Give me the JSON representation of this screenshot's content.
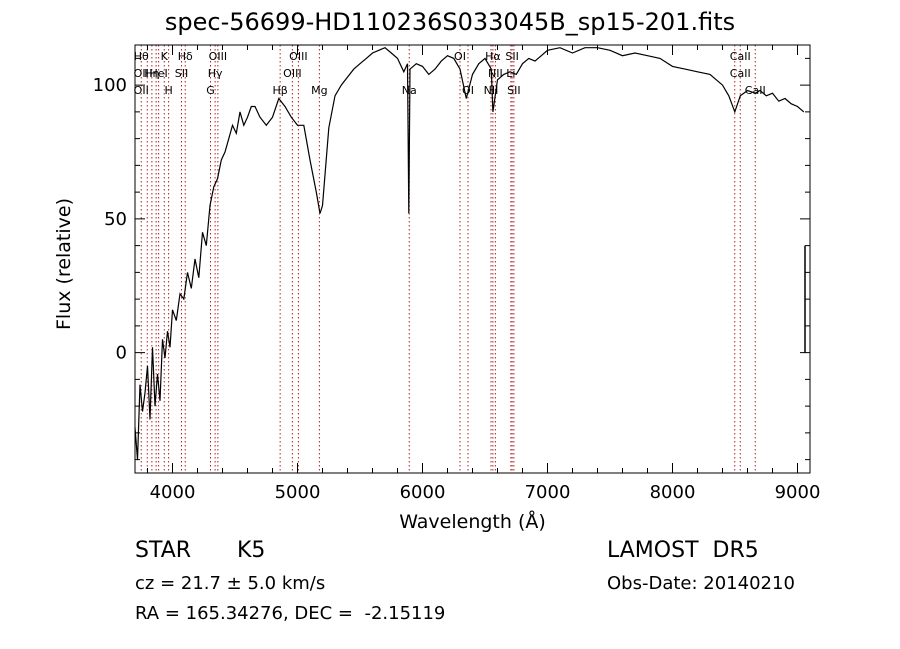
{
  "chart_data": {
    "type": "line",
    "title": "spec-56699-HD110236S033045B_sp15-201.fits",
    "xlabel": "Wavelength (Å)",
    "ylabel": "Flux (relative)",
    "xlim": [
      3700,
      9100
    ],
    "ylim": [
      -45,
      115
    ],
    "xticks": [
      {
        "value": 4000,
        "label": "4000"
      },
      {
        "value": 5000,
        "label": "5000"
      },
      {
        "value": 6000,
        "label": "6000"
      },
      {
        "value": 7000,
        "label": "7000"
      },
      {
        "value": 8000,
        "label": "8000"
      },
      {
        "value": 9000,
        "label": "9000"
      }
    ],
    "yticks": [
      {
        "value": 0,
        "label": "0"
      },
      {
        "value": 50,
        "label": "50"
      },
      {
        "value": 100,
        "label": "100"
      }
    ],
    "grid": false,
    "series": [
      {
        "x": [
          3700,
          3720,
          3740,
          3760,
          3780,
          3800,
          3820,
          3840,
          3860,
          3880,
          3900,
          3920,
          3940,
          3960,
          3980,
          4000,
          4030,
          4060,
          4090,
          4120,
          4150,
          4180,
          4210,
          4240,
          4270,
          4300,
          4330,
          4360,
          4390,
          4420,
          4450,
          4480,
          4510,
          4540,
          4570,
          4600,
          4630,
          4660,
          4700,
          4750,
          4800,
          4850,
          4900,
          4950,
          5000,
          5050,
          5100,
          5150,
          5180,
          5200,
          5250,
          5300,
          5350,
          5400,
          5450,
          5500,
          5550,
          5600,
          5650,
          5700,
          5750,
          5800,
          5850,
          5880,
          5890,
          5900,
          5950,
          6000,
          6050,
          6100,
          6150,
          6200,
          6250,
          6300,
          6350,
          6400,
          6450,
          6500,
          6550,
          6563,
          6600,
          6650,
          6700,
          6750,
          6800,
          6850,
          6900,
          6950,
          7000,
          7100,
          7200,
          7300,
          7400,
          7500,
          7600,
          7700,
          7800,
          7900,
          8000,
          8100,
          8200,
          8300,
          8400,
          8450,
          8498,
          8542,
          8600,
          8662,
          8700,
          8750,
          8800,
          8850,
          8900,
          8950,
          9000,
          9050
        ],
        "y": [
          -28,
          -40,
          -12,
          -22,
          -15,
          -5,
          -25,
          2,
          -20,
          -8,
          -18,
          5,
          -2,
          8,
          2,
          16,
          12,
          22,
          20,
          30,
          24,
          35,
          28,
          45,
          40,
          55,
          62,
          65,
          72,
          75,
          80,
          85,
          82,
          90,
          85,
          88,
          92,
          92,
          88,
          85,
          88,
          95,
          92,
          88,
          85,
          85,
          72,
          60,
          52,
          55,
          84,
          96,
          100,
          103,
          106,
          108,
          110,
          112,
          113,
          114,
          112,
          110,
          105,
          108,
          52,
          106,
          108,
          107,
          104,
          106,
          109,
          111,
          110,
          106,
          95,
          104,
          108,
          110,
          106,
          90,
          102,
          104,
          105,
          104,
          108,
          110,
          109,
          111,
          113,
          114,
          112,
          114,
          114,
          113,
          111,
          112,
          111,
          110,
          107,
          106,
          105,
          104,
          100,
          96,
          90,
          96,
          98,
          97,
          98,
          96,
          97,
          94,
          95,
          93,
          92,
          90
        ]
      }
    ],
    "error_bar": {
      "x": 9060,
      "y_low": 0,
      "y_high": 40
    },
    "line_markers": [
      {
        "x": 3750,
        "labels": [
          "Hθ",
          "OII",
          "OII"
        ]
      },
      {
        "x": 3798,
        "labels": [
          "",
          "",
          ""
        ]
      },
      {
        "x": 3835,
        "labels": [
          "",
          "Hη",
          ""
        ]
      },
      {
        "x": 3869,
        "labels": [
          "",
          "",
          ""
        ]
      },
      {
        "x": 3889,
        "labels": [
          "",
          "HeI",
          ""
        ]
      },
      {
        "x": 3934,
        "labels": [
          "K",
          "",
          ""
        ]
      },
      {
        "x": 3969,
        "labels": [
          "",
          "",
          "H"
        ]
      },
      {
        "x": 4072,
        "labels": [
          "",
          "SII",
          ""
        ]
      },
      {
        "x": 4102,
        "labels": [
          "Hδ",
          "",
          ""
        ]
      },
      {
        "x": 4304,
        "labels": [
          "",
          "",
          "G"
        ]
      },
      {
        "x": 4341,
        "labels": [
          "",
          "Hγ",
          ""
        ]
      },
      {
        "x": 4363,
        "labels": [
          "OIII",
          "",
          ""
        ]
      },
      {
        "x": 4861,
        "labels": [
          "",
          "",
          "Hβ"
        ]
      },
      {
        "x": 4959,
        "labels": [
          "",
          "OIII",
          ""
        ]
      },
      {
        "x": 5007,
        "labels": [
          "OIII",
          "",
          ""
        ]
      },
      {
        "x": 5175,
        "labels": [
          "",
          "",
          "Mg"
        ]
      },
      {
        "x": 5894,
        "labels": [
          "",
          "",
          "Na"
        ]
      },
      {
        "x": 6300,
        "labels": [
          "OI",
          "",
          ""
        ]
      },
      {
        "x": 6364,
        "labels": [
          "",
          "",
          "OI"
        ]
      },
      {
        "x": 6548,
        "labels": [
          "",
          "",
          "NII"
        ]
      },
      {
        "x": 6563,
        "labels": [
          "Hα",
          "",
          ""
        ]
      },
      {
        "x": 6583,
        "labels": [
          "",
          "NII",
          ""
        ]
      },
      {
        "x": 6707,
        "labels": [
          "",
          "Li",
          ""
        ]
      },
      {
        "x": 6717,
        "labels": [
          "SII",
          "",
          ""
        ]
      },
      {
        "x": 6731,
        "labels": [
          "",
          "",
          "SII"
        ]
      },
      {
        "x": 8498,
        "labels": [
          "",
          "",
          ""
        ]
      },
      {
        "x": 8542,
        "labels": [
          "CaII",
          "CaII",
          ""
        ]
      },
      {
        "x": 8662,
        "labels": [
          "",
          "",
          "CaII"
        ]
      }
    ]
  },
  "info": {
    "class": "STAR",
    "subclass": "K5",
    "survey": "LAMOST  DR5",
    "cz": "cz = 21.7 ± 5.0 km/s",
    "obs_date": "Obs-Date: 20140210",
    "radec": "RA = 165.34276, DEC =  -2.15119"
  },
  "colors": {
    "spectrum": "#000000",
    "line_marker": "#b22222",
    "axes": "#000000",
    "background": "#ffffff"
  }
}
